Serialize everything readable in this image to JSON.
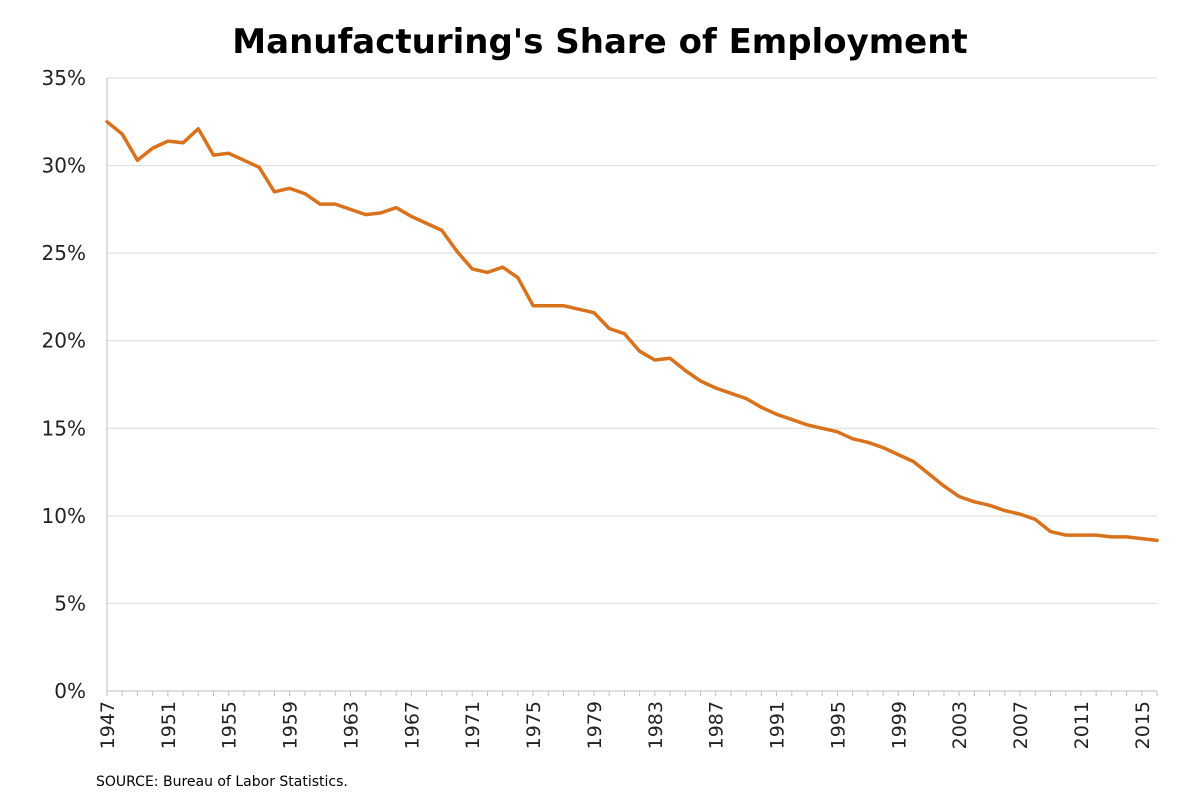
{
  "chart_data": {
    "type": "line",
    "title": "Manufacturing's Share of Employment",
    "xlabel": "",
    "ylabel": "",
    "source": "SOURCE: Bureau of Labor Statistics.",
    "ylim": [
      0,
      35
    ],
    "xlim": [
      1947,
      2016
    ],
    "y_ticks": [
      "0%",
      "5%",
      "10%",
      "15%",
      "20%",
      "25%",
      "30%",
      "35%"
    ],
    "x_ticks": [
      "1947",
      "1951",
      "1955",
      "1959",
      "1963",
      "1967",
      "1971",
      "1975",
      "1979",
      "1983",
      "1987",
      "1991",
      "1995",
      "1999",
      "2003",
      "2007",
      "2011",
      "2015"
    ],
    "grid": true,
    "line_color": "#d9721d",
    "series": [
      {
        "x": [
          1947,
          1948,
          1949,
          1950,
          1951,
          1952,
          1953,
          1954,
          1955,
          1956,
          1957,
          1958,
          1959,
          1960,
          1961,
          1962,
          1963,
          1964,
          1965,
          1966,
          1967,
          1968,
          1969,
          1970,
          1971,
          1972,
          1973,
          1974,
          1975,
          1976,
          1977,
          1978,
          1979,
          1980,
          1981,
          1982,
          1983,
          1984,
          1985,
          1986,
          1987,
          1988,
          1989,
          1990,
          1991,
          1992,
          1993,
          1994,
          1995,
          1996,
          1997,
          1998,
          1999,
          2000,
          2001,
          2002,
          2003,
          2004,
          2005,
          2006,
          2007,
          2008,
          2009,
          2010,
          2011,
          2012,
          2013,
          2014,
          2015,
          2016
        ],
        "values": [
          32.5,
          31.8,
          30.3,
          31.0,
          31.4,
          31.3,
          32.1,
          30.6,
          30.7,
          30.3,
          29.9,
          28.5,
          28.7,
          28.4,
          27.8,
          27.8,
          27.5,
          27.2,
          27.3,
          27.6,
          27.1,
          26.7,
          26.3,
          25.1,
          24.1,
          23.9,
          24.2,
          23.6,
          22.0,
          22.0,
          22.0,
          21.8,
          21.6,
          20.7,
          20.4,
          19.4,
          18.9,
          19.0,
          18.3,
          17.7,
          17.3,
          17.0,
          16.7,
          16.2,
          15.8,
          15.5,
          15.2,
          15.0,
          14.8,
          14.4,
          14.2,
          13.9,
          13.5,
          13.1,
          12.4,
          11.7,
          11.1,
          10.8,
          10.6,
          10.3,
          10.1,
          9.8,
          9.1,
          8.9,
          8.9,
          8.9,
          8.8,
          8.8,
          8.7,
          8.6
        ]
      }
    ]
  }
}
